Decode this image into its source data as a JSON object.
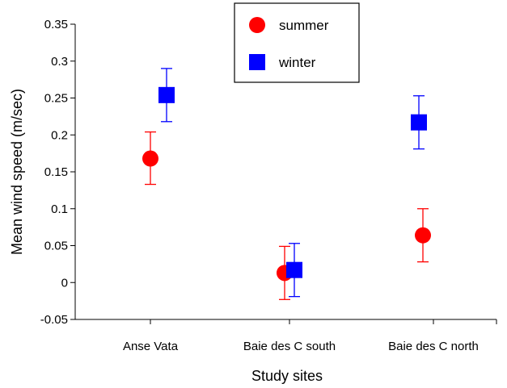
{
  "chart_data": {
    "type": "scatter",
    "title": "",
    "xlabel": "Study sites",
    "ylabel": "Mean wind speed (m/sec)",
    "categories": [
      "Anse Vata",
      "Baie des C south",
      "Baie des C north"
    ],
    "ylim": [
      -0.05,
      0.35
    ],
    "yticks": [
      "-0.05",
      "0",
      "0.05",
      "0.1",
      "0.15",
      "0.2",
      "0.25",
      "0.3",
      "0.35"
    ],
    "legend_position": "top-center",
    "grid": false,
    "series": [
      {
        "name": "summer",
        "marker": "circle",
        "color": "#ff0000",
        "values": [
          0.168,
          0.013,
          0.064
        ],
        "err_low": [
          0.133,
          -0.023,
          0.028
        ],
        "err_high": [
          0.204,
          0.049,
          0.1
        ]
      },
      {
        "name": "winter",
        "marker": "square",
        "color": "#0000ff",
        "values": [
          0.254,
          0.017,
          0.217
        ],
        "err_low": [
          0.218,
          -0.019,
          0.181
        ],
        "err_high": [
          0.29,
          0.053,
          0.253
        ]
      }
    ]
  }
}
